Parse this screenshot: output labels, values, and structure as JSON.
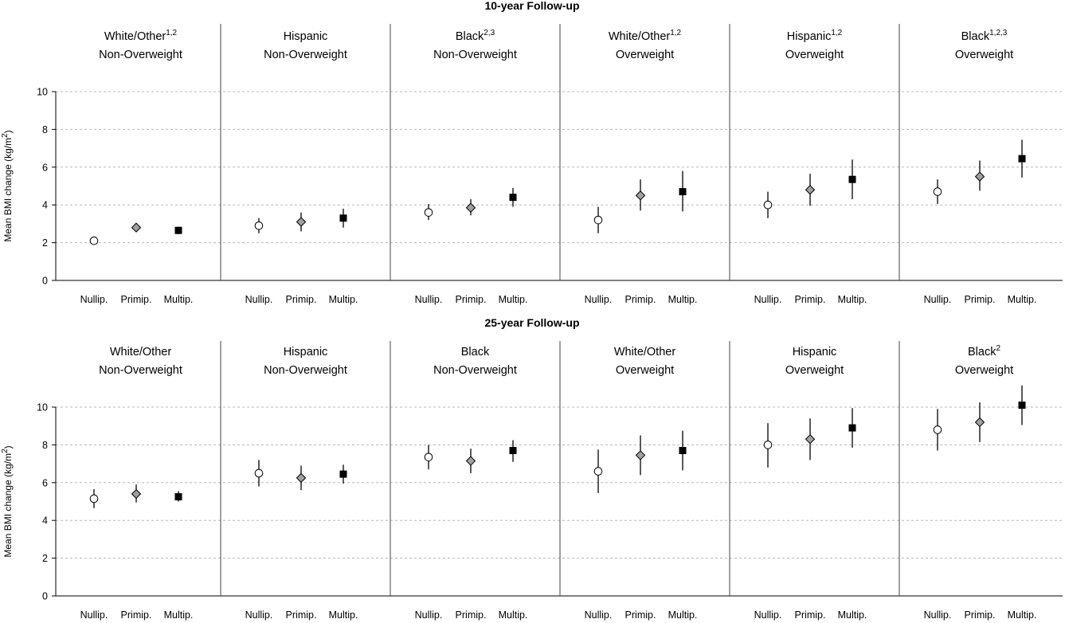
{
  "chart_data": [
    {
      "type": "scatter",
      "title": "10-year Follow-up",
      "ylabel": "Mean BMI change (kg/m2)",
      "ylabel_main": "Mean BMI change (kg/m",
      "ylabel_sup": "2",
      "ylabel_end": ")",
      "ylim": [
        0,
        10
      ],
      "yticks": [
        0,
        2,
        4,
        6,
        8,
        10
      ],
      "grid": true,
      "categories": [
        "Nullip.",
        "Primip.",
        "Multip."
      ],
      "markers": [
        "open-circle",
        "gray-diamond",
        "black-square"
      ],
      "panels": [
        {
          "line1": "White/Other",
          "sup1": "1,2",
          "line2": "Non-Overweight",
          "points": [
            {
              "y": 2.1,
              "lo": 1.9,
              "hi": 2.3
            },
            {
              "y": 2.8,
              "lo": 2.6,
              "hi": 3.0
            },
            {
              "y": 2.65,
              "lo": 2.45,
              "hi": 2.85
            }
          ]
        },
        {
          "line1": "Hispanic",
          "sup1": "",
          "line2": "Non-Overweight",
          "points": [
            {
              "y": 2.9,
              "lo": 2.5,
              "hi": 3.3
            },
            {
              "y": 3.1,
              "lo": 2.6,
              "hi": 3.6
            },
            {
              "y": 3.3,
              "lo": 2.8,
              "hi": 3.8
            }
          ]
        },
        {
          "line1": "Black",
          "sup1": "2,3",
          "line2": "Non-Overweight",
          "points": [
            {
              "y": 3.6,
              "lo": 3.2,
              "hi": 4.05
            },
            {
              "y": 3.85,
              "lo": 3.45,
              "hi": 4.3
            },
            {
              "y": 4.4,
              "lo": 3.9,
              "hi": 4.9
            }
          ]
        },
        {
          "line1": "White/Other",
          "sup1": "1,2",
          "line2": "Overweight",
          "points": [
            {
              "y": 3.2,
              "lo": 2.5,
              "hi": 3.9
            },
            {
              "y": 4.5,
              "lo": 3.7,
              "hi": 5.35
            },
            {
              "y": 4.7,
              "lo": 3.65,
              "hi": 5.8
            }
          ]
        },
        {
          "line1": "Hispanic",
          "sup1": "1,2",
          "line2": "Overweight",
          "points": [
            {
              "y": 4.0,
              "lo": 3.3,
              "hi": 4.7
            },
            {
              "y": 4.8,
              "lo": 3.95,
              "hi": 5.65
            },
            {
              "y": 5.35,
              "lo": 4.3,
              "hi": 6.4
            }
          ]
        },
        {
          "line1": "Black",
          "sup1": "1,2,3",
          "line2": "Overweight",
          "points": [
            {
              "y": 4.7,
              "lo": 4.05,
              "hi": 5.35
            },
            {
              "y": 5.5,
              "lo": 4.75,
              "hi": 6.35
            },
            {
              "y": 6.45,
              "lo": 5.45,
              "hi": 7.45
            }
          ]
        }
      ]
    },
    {
      "type": "scatter",
      "title": "25-year Follow-up",
      "ylabel": "Mean BMI change (kg/m2)",
      "ylabel_main": "Mean BMI change (kg/m",
      "ylabel_sup": "2",
      "ylabel_end": ")",
      "ylim": [
        0,
        10
      ],
      "yticks": [
        0,
        2,
        4,
        6,
        8,
        10
      ],
      "grid": true,
      "categories": [
        "Nullip.",
        "Primip.",
        "Multip."
      ],
      "markers": [
        "open-circle",
        "gray-diamond",
        "black-square"
      ],
      "panels": [
        {
          "line1": "White/Other",
          "sup1": "",
          "line2": "Non-Overweight",
          "points": [
            {
              "y": 5.15,
              "lo": 4.65,
              "hi": 5.65
            },
            {
              "y": 5.4,
              "lo": 4.95,
              "hi": 5.9
            },
            {
              "y": 5.25,
              "lo": 5.0,
              "hi": 5.55
            }
          ]
        },
        {
          "line1": "Hispanic",
          "sup1": "",
          "line2": "Non-Overweight",
          "points": [
            {
              "y": 6.5,
              "lo": 5.8,
              "hi": 7.2
            },
            {
              "y": 6.25,
              "lo": 5.6,
              "hi": 6.9
            },
            {
              "y": 6.45,
              "lo": 5.95,
              "hi": 6.95
            }
          ]
        },
        {
          "line1": "Black",
          "sup1": "",
          "line2": "Non-Overweight",
          "points": [
            {
              "y": 7.35,
              "lo": 6.7,
              "hi": 8.0
            },
            {
              "y": 7.15,
              "lo": 6.5,
              "hi": 7.8
            },
            {
              "y": 7.7,
              "lo": 7.1,
              "hi": 8.25
            }
          ]
        },
        {
          "line1": "White/Other",
          "sup1": "",
          "line2": "Overweight",
          "points": [
            {
              "y": 6.6,
              "lo": 5.45,
              "hi": 7.75
            },
            {
              "y": 7.45,
              "lo": 6.4,
              "hi": 8.5
            },
            {
              "y": 7.7,
              "lo": 6.65,
              "hi": 8.75
            }
          ]
        },
        {
          "line1": "Hispanic",
          "sup1": "",
          "line2": "Overweight",
          "points": [
            {
              "y": 8.0,
              "lo": 6.8,
              "hi": 9.15
            },
            {
              "y": 8.3,
              "lo": 7.2,
              "hi": 9.4
            },
            {
              "y": 8.9,
              "lo": 7.85,
              "hi": 9.95
            }
          ]
        },
        {
          "line1": "Black",
          "sup1": "2",
          "line2": "Overweight",
          "points": [
            {
              "y": 8.8,
              "lo": 7.7,
              "hi": 9.9
            },
            {
              "y": 9.2,
              "lo": 8.15,
              "hi": 10.25
            },
            {
              "y": 10.1,
              "lo": 9.05,
              "hi": 11.15
            }
          ]
        }
      ]
    }
  ]
}
